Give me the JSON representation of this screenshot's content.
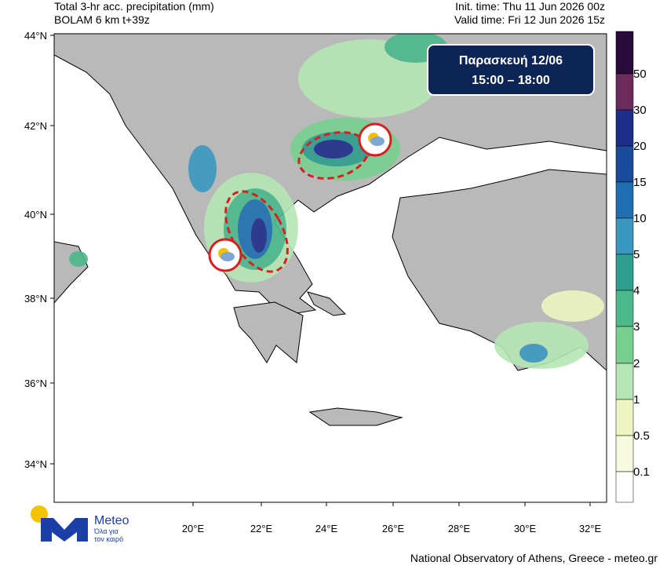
{
  "header": {
    "title": "Total 3-hr acc. precipitation (mm)",
    "model": "BOLAM 6 km t+39z",
    "init_time": "Init. time: Thu 11 Jun 2026 00z",
    "valid_time": "Valid time: Fri 12 Jun 2026 15z"
  },
  "banner": {
    "day": "Παρασκευή 12/06",
    "hours": "15:00 – 18:00"
  },
  "lat_labels": [
    "44°N",
    "42°N",
    "40°N",
    "38°N",
    "36°N",
    "34°N"
  ],
  "lon_labels": [
    "20°E",
    "22°E",
    "24°E",
    "26°E",
    "28°E",
    "30°E",
    "32°E"
  ],
  "colorbar_labels": [
    "50",
    "30",
    "20",
    "15",
    "10",
    "5",
    "4",
    "3",
    "2",
    "1",
    "0.5",
    "0.1"
  ],
  "logo": {
    "name": "Meteo",
    "tagline_1": "Όλα για",
    "tagline_2": "τον καιρό"
  },
  "footer": "National Observatory of Athens, Greece - meteo.gr"
}
